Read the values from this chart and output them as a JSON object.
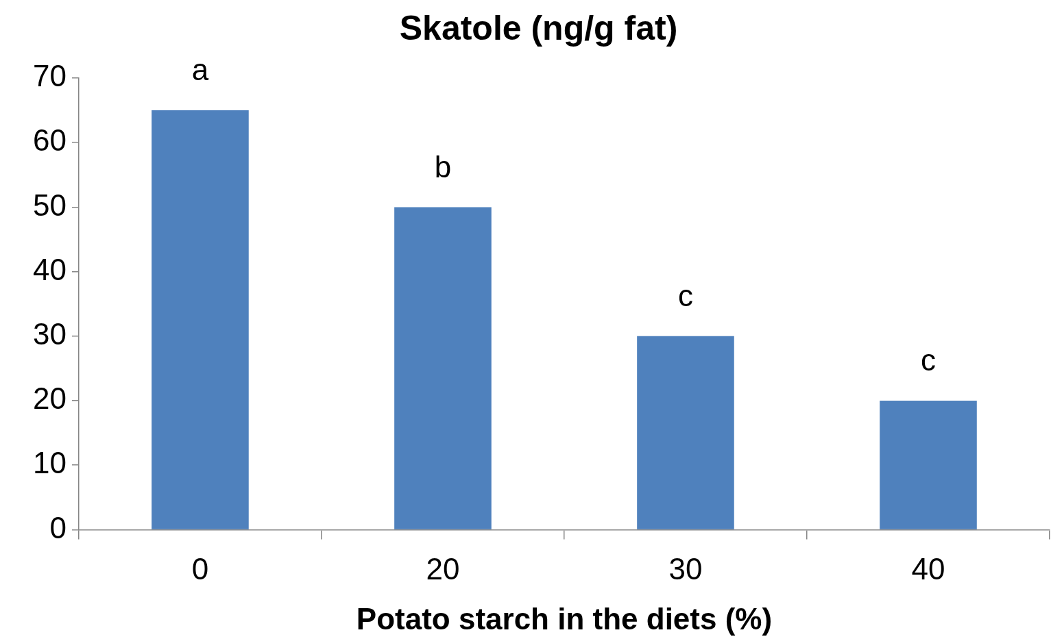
{
  "chart_data": {
    "type": "bar",
    "title": "Skatole (ng/g fat)",
    "xlabel": "Potato starch in the diets (%)",
    "categories": [
      "0",
      "20",
      "30",
      "40"
    ],
    "values": [
      65,
      50,
      30,
      20
    ],
    "color": "#4f81bd",
    "ylim": [
      0,
      70
    ],
    "yticks": [
      0,
      10,
      20,
      30,
      40,
      50,
      60,
      70
    ],
    "grid": false,
    "legend": false,
    "annotations": [
      {
        "text": "a",
        "x": "0",
        "y": 65
      },
      {
        "text": "b",
        "x": "20",
        "y": 50
      },
      {
        "text": "c",
        "x": "30",
        "y": 30
      },
      {
        "text": "c",
        "x": "40",
        "y": 20
      }
    ]
  }
}
